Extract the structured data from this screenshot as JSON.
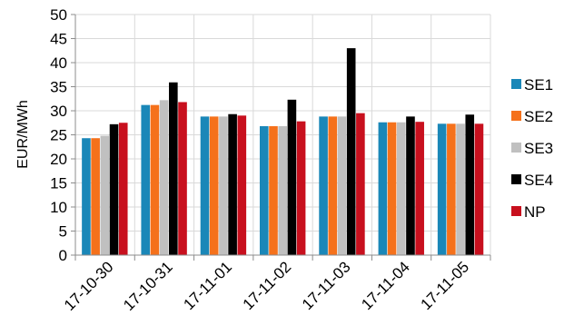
{
  "chart_data": {
    "type": "bar",
    "ylabel": "EUR/MWh",
    "ylim": [
      0,
      50
    ],
    "yticks": [
      0,
      5,
      10,
      15,
      20,
      25,
      30,
      35,
      40,
      45,
      50
    ],
    "grid": true,
    "legend_position": "right",
    "categories": [
      "17-10-30",
      "17-10-31",
      "17-11-01",
      "17-11-02",
      "17-11-03",
      "17-11-04",
      "17-11-05"
    ],
    "series": [
      {
        "name": "SE1",
        "color": "#1a87b8",
        "values": [
          24.3,
          31.2,
          28.8,
          26.8,
          28.8,
          27.6,
          27.3
        ]
      },
      {
        "name": "SE2",
        "color": "#f5711b",
        "values": [
          24.3,
          31.2,
          28.8,
          26.8,
          28.8,
          27.6,
          27.3
        ]
      },
      {
        "name": "SE3",
        "color": "#c0c0c0",
        "values": [
          24.8,
          32.2,
          28.8,
          26.8,
          28.8,
          27.6,
          27.3
        ]
      },
      {
        "name": "SE4",
        "color": "#000000",
        "values": [
          27.2,
          35.9,
          29.3,
          32.3,
          43.0,
          28.8,
          29.2
        ]
      },
      {
        "name": "NP",
        "color": "#c8101e",
        "values": [
          27.5,
          31.8,
          29.0,
          27.8,
          29.5,
          27.7,
          27.3
        ]
      }
    ]
  }
}
